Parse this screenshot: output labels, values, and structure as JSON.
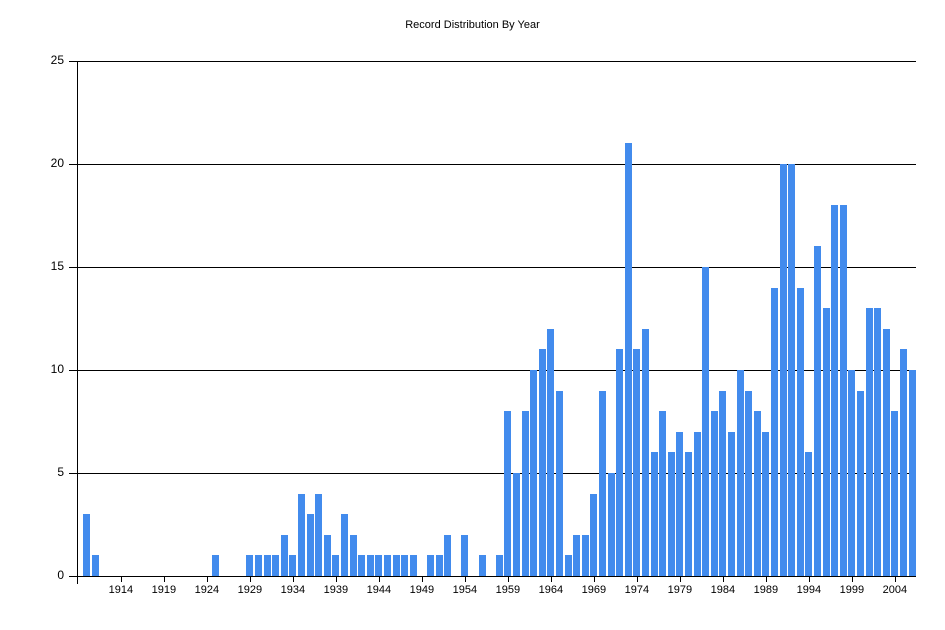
{
  "chart_data": {
    "type": "bar",
    "title": "Record Distribution By Year",
    "xlabel": "",
    "ylabel": "",
    "ylim": [
      0,
      25
    ],
    "yticks": [
      0,
      5,
      10,
      15,
      20,
      25
    ],
    "xticks": [
      1914,
      1919,
      1924,
      1929,
      1934,
      1939,
      1944,
      1949,
      1954,
      1959,
      1964,
      1969,
      1974,
      1979,
      1984,
      1989,
      1994,
      1999,
      2004
    ],
    "grid": true,
    "bar_color": "#428bed",
    "categories": [
      1910,
      1911,
      1925,
      1929,
      1930,
      1931,
      1932,
      1933,
      1934,
      1935,
      1936,
      1937,
      1938,
      1939,
      1940,
      1941,
      1942,
      1943,
      1944,
      1945,
      1946,
      1947,
      1948,
      1950,
      1951,
      1952,
      1954,
      1956,
      1958,
      1959,
      1960,
      1961,
      1962,
      1963,
      1964,
      1965,
      1966,
      1967,
      1968,
      1969,
      1970,
      1971,
      1972,
      1973,
      1974,
      1975,
      1976,
      1977,
      1978,
      1979,
      1980,
      1981,
      1982,
      1983,
      1984,
      1985,
      1986,
      1987,
      1988,
      1989,
      1990,
      1991,
      1992,
      1993,
      1994,
      1995,
      1996,
      1997,
      1998,
      1999,
      2000,
      2001,
      2002,
      2003,
      2004,
      2005,
      2006
    ],
    "values": [
      3,
      1,
      1,
      1,
      1,
      1,
      1,
      2,
      1,
      4,
      3,
      4,
      2,
      1,
      3,
      2,
      1,
      1,
      1,
      1,
      1,
      1,
      1,
      1,
      1,
      2,
      2,
      1,
      1,
      8,
      5,
      8,
      10,
      11,
      12,
      9,
      1,
      2,
      2,
      4,
      9,
      5,
      11,
      21,
      11,
      12,
      6,
      8,
      6,
      7,
      6,
      7,
      15,
      8,
      9,
      7,
      10,
      9,
      8,
      7,
      14,
      20,
      20,
      14,
      6,
      16,
      13,
      18,
      18,
      10,
      9,
      13,
      13,
      12,
      8,
      11,
      10
    ]
  }
}
